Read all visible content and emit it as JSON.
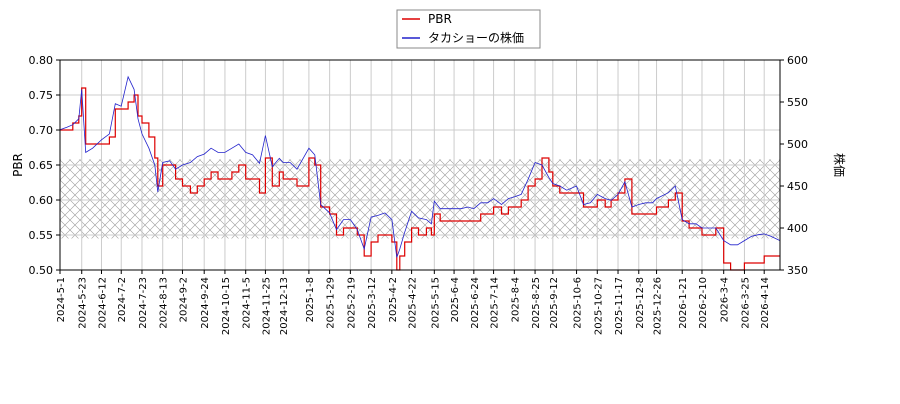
{
  "chart_data": {
    "type": "line",
    "title": "",
    "xlabel": "",
    "ylabel_left": "PBR",
    "ylabel_right": "株価",
    "legend_position": "top-center",
    "grid": true,
    "x_start": "2024-5-1",
    "x_end": "2026-4-30",
    "x_tick_labels": [
      "2024-5-1",
      "2024-5-23",
      "2024-6-12",
      "2024-7-2",
      "2024-7-23",
      "2024-8-13",
      "2024-9-2",
      "2024-9-24",
      "2024-10-15",
      "2024-11-5",
      "2024-11-25",
      "2024-12-13",
      "2025-1-8",
      "2025-1-29",
      "2025-2-19",
      "2025-3-12",
      "2025-4-2",
      "2025-4-22",
      "2025-5-15",
      "2025-6-4",
      "2025-6-24",
      "2025-7-14",
      "2025-8-4",
      "2025-8-25",
      "2025-9-12",
      "2025-10-6",
      "2025-10-27",
      "2025-11-17",
      "2025-12-8",
      "2025-12-26",
      "2026-1-21",
      "2026-2-10",
      "2026-3-4",
      "2026-3-25",
      "2026-4-14"
    ],
    "y_left_range": [
      0.5,
      0.8
    ],
    "y_left_ticks": [
      "0.50",
      "0.55",
      "0.60",
      "0.65",
      "0.70",
      "0.75",
      "0.80"
    ],
    "y_right_range": [
      350,
      600
    ],
    "y_right_ticks": [
      "350",
      "400",
      "450",
      "500",
      "550",
      "600"
    ],
    "shaded_band": {
      "y_left_range": [
        0.545,
        0.658
      ],
      "pattern": "crosshatch",
      "color": "#999999"
    },
    "series": [
      {
        "name": "PBR",
        "axis": "left",
        "color": "#dd0000",
        "x": [
          "2024-5-1",
          "2024-5-8",
          "2024-5-14",
          "2024-5-20",
          "2024-5-23",
          "2024-5-27",
          "2024-6-3",
          "2024-6-12",
          "2024-6-20",
          "2024-6-26",
          "2024-7-2",
          "2024-7-9",
          "2024-7-15",
          "2024-7-19",
          "2024-7-23",
          "2024-7-30",
          "2024-8-5",
          "2024-8-8",
          "2024-8-13",
          "2024-8-20",
          "2024-8-26",
          "2024-9-2",
          "2024-9-10",
          "2024-9-17",
          "2024-9-24",
          "2024-10-1",
          "2024-10-8",
          "2024-10-15",
          "2024-10-22",
          "2024-10-29",
          "2024-11-5",
          "2024-11-12",
          "2024-11-19",
          "2024-11-25",
          "2024-12-2",
          "2024-12-9",
          "2024-12-13",
          "2024-12-20",
          "2024-12-27",
          "2025-1-8",
          "2025-1-14",
          "2025-1-20",
          "2025-1-29",
          "2025-2-5",
          "2025-2-12",
          "2025-2-19",
          "2025-2-26",
          "2025-3-5",
          "2025-3-12",
          "2025-3-19",
          "2025-3-26",
          "2025-4-2",
          "2025-4-7",
          "2025-4-10",
          "2025-4-15",
          "2025-4-22",
          "2025-4-29",
          "2025-5-7",
          "2025-5-12",
          "2025-5-15",
          "2025-5-21",
          "2025-5-27",
          "2025-6-4",
          "2025-6-11",
          "2025-6-18",
          "2025-6-24",
          "2025-7-1",
          "2025-7-8",
          "2025-7-14",
          "2025-7-22",
          "2025-7-29",
          "2025-8-4",
          "2025-8-11",
          "2025-8-18",
          "2025-8-25",
          "2025-9-1",
          "2025-9-8",
          "2025-9-12",
          "2025-9-19",
          "2025-9-26",
          "2025-10-6",
          "2025-10-13",
          "2025-10-20",
          "2025-10-27",
          "2025-11-4",
          "2025-11-10",
          "2025-11-17",
          "2025-11-24",
          "2025-12-1",
          "2025-12-8",
          "2025-12-15",
          "2025-12-22",
          "2025-12-26",
          "2026-1-7",
          "2026-1-14",
          "2026-1-21",
          "2026-1-28",
          "2026-2-4",
          "2026-2-10",
          "2026-2-17",
          "2026-2-24",
          "2026-3-4",
          "2026-3-11",
          "2026-3-18",
          "2026-3-25",
          "2026-4-1",
          "2026-4-8",
          "2026-4-14",
          "2026-4-21",
          "2026-4-30"
        ],
        "values": [
          0.7,
          0.7,
          0.71,
          0.72,
          0.76,
          0.68,
          0.68,
          0.68,
          0.69,
          0.73,
          0.73,
          0.74,
          0.75,
          0.72,
          0.71,
          0.69,
          0.66,
          0.62,
          0.65,
          0.65,
          0.63,
          0.62,
          0.61,
          0.62,
          0.63,
          0.64,
          0.63,
          0.63,
          0.64,
          0.65,
          0.63,
          0.63,
          0.61,
          0.66,
          0.62,
          0.64,
          0.63,
          0.63,
          0.62,
          0.66,
          0.65,
          0.59,
          0.58,
          0.55,
          0.56,
          0.56,
          0.55,
          0.52,
          0.54,
          0.55,
          0.55,
          0.54,
          0.5,
          0.52,
          0.54,
          0.56,
          0.55,
          0.56,
          0.55,
          0.58,
          0.57,
          0.57,
          0.57,
          0.57,
          0.57,
          0.57,
          0.58,
          0.58,
          0.59,
          0.58,
          0.59,
          0.59,
          0.6,
          0.62,
          0.63,
          0.66,
          0.64,
          0.62,
          0.61,
          0.61,
          0.61,
          0.59,
          0.59,
          0.6,
          0.59,
          0.6,
          0.61,
          0.63,
          0.58,
          0.58,
          0.58,
          0.58,
          0.59,
          0.6,
          0.61,
          0.57,
          0.56,
          0.56,
          0.55,
          0.55,
          0.56,
          0.51,
          0.5,
          0.5,
          0.51,
          0.51,
          0.51,
          0.52,
          0.52,
          0.52
        ]
      },
      {
        "name": "タカショーの株価",
        "axis": "right",
        "color": "#2222cc",
        "x": [
          "2024-5-1",
          "2024-5-8",
          "2024-5-14",
          "2024-5-20",
          "2024-5-23",
          "2024-5-27",
          "2024-6-3",
          "2024-6-12",
          "2024-6-20",
          "2024-6-26",
          "2024-7-2",
          "2024-7-9",
          "2024-7-15",
          "2024-7-19",
          "2024-7-23",
          "2024-7-30",
          "2024-8-5",
          "2024-8-8",
          "2024-8-13",
          "2024-8-20",
          "2024-8-26",
          "2024-9-2",
          "2024-9-10",
          "2024-9-17",
          "2024-9-24",
          "2024-10-1",
          "2024-10-8",
          "2024-10-15",
          "2024-10-22",
          "2024-10-29",
          "2024-11-5",
          "2024-11-12",
          "2024-11-19",
          "2024-11-25",
          "2024-12-2",
          "2024-12-9",
          "2024-12-13",
          "2024-12-20",
          "2024-12-27",
          "2025-1-8",
          "2025-1-14",
          "2025-1-20",
          "2025-1-29",
          "2025-2-5",
          "2025-2-12",
          "2025-2-19",
          "2025-2-26",
          "2025-3-5",
          "2025-3-12",
          "2025-3-19",
          "2025-3-26",
          "2025-4-2",
          "2025-4-7",
          "2025-4-10",
          "2025-4-15",
          "2025-4-22",
          "2025-4-29",
          "2025-5-7",
          "2025-5-12",
          "2025-5-15",
          "2025-5-21",
          "2025-5-27",
          "2025-6-4",
          "2025-6-11",
          "2025-6-18",
          "2025-6-24",
          "2025-7-1",
          "2025-7-8",
          "2025-7-14",
          "2025-7-22",
          "2025-7-29",
          "2025-8-4",
          "2025-8-11",
          "2025-8-18",
          "2025-8-25",
          "2025-9-1",
          "2025-9-8",
          "2025-9-12",
          "2025-9-19",
          "2025-9-26",
          "2025-10-6",
          "2025-10-13",
          "2025-10-20",
          "2025-10-27",
          "2025-11-4",
          "2025-11-10",
          "2025-11-17",
          "2025-11-24",
          "2025-12-1",
          "2025-12-8",
          "2025-12-15",
          "2025-12-22",
          "2025-12-26",
          "2026-1-7",
          "2026-1-14",
          "2026-1-21",
          "2026-1-28",
          "2026-2-4",
          "2026-2-10",
          "2026-2-17",
          "2026-2-24",
          "2026-3-4",
          "2026-3-11",
          "2026-3-18",
          "2026-3-25",
          "2026-4-1",
          "2026-4-8",
          "2026-4-14",
          "2026-4-21",
          "2026-4-30"
        ],
        "values": [
          517,
          520,
          523,
          530,
          565,
          490,
          495,
          505,
          512,
          548,
          545,
          580,
          565,
          530,
          512,
          495,
          475,
          443,
          478,
          480,
          470,
          475,
          478,
          485,
          488,
          495,
          490,
          490,
          495,
          500,
          490,
          487,
          477,
          510,
          473,
          483,
          478,
          478,
          470,
          495,
          487,
          428,
          418,
          398,
          410,
          410,
          398,
          375,
          413,
          415,
          418,
          410,
          365,
          375,
          395,
          420,
          412,
          410,
          405,
          432,
          423,
          423,
          423,
          423,
          425,
          423,
          430,
          430,
          435,
          428,
          435,
          437,
          440,
          458,
          478,
          475,
          460,
          453,
          450,
          445,
          450,
          428,
          430,
          440,
          435,
          433,
          440,
          455,
          425,
          428,
          430,
          430,
          435,
          442,
          450,
          410,
          405,
          405,
          400,
          400,
          400,
          385,
          380,
          380,
          385,
          390,
          392,
          393,
          390,
          385
        ]
      }
    ]
  }
}
